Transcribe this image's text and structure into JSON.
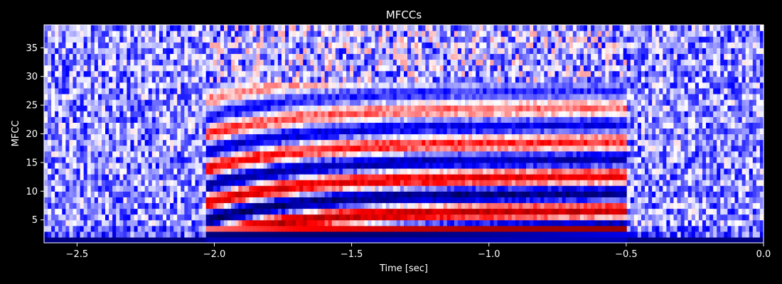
{
  "chart_data": {
    "type": "heatmap",
    "title": "MFCCs",
    "xlabel": "Time [sec]",
    "ylabel": "MFCC",
    "xlim": [
      -2.62,
      0.0
    ],
    "ylim": [
      1,
      39
    ],
    "x_ticks": [
      -2.5,
      -2.0,
      -1.5,
      -1.0,
      -0.5,
      0.0
    ],
    "x_tick_labels": [
      "−2.5",
      "−2.0",
      "−1.5",
      "−1.0",
      "−0.5",
      "0.0"
    ],
    "y_ticks": [
      5,
      10,
      15,
      20,
      25,
      30,
      35
    ],
    "y_tick_labels": [
      "5",
      "10",
      "15",
      "20",
      "25",
      "30",
      "35"
    ],
    "colormap": "seismic",
    "background_color": "#000000",
    "text_color": "#ffffff",
    "grid": false,
    "legend": "none",
    "signal_onset_sec": -2.03,
    "signal_offset_sec": -0.5
  }
}
